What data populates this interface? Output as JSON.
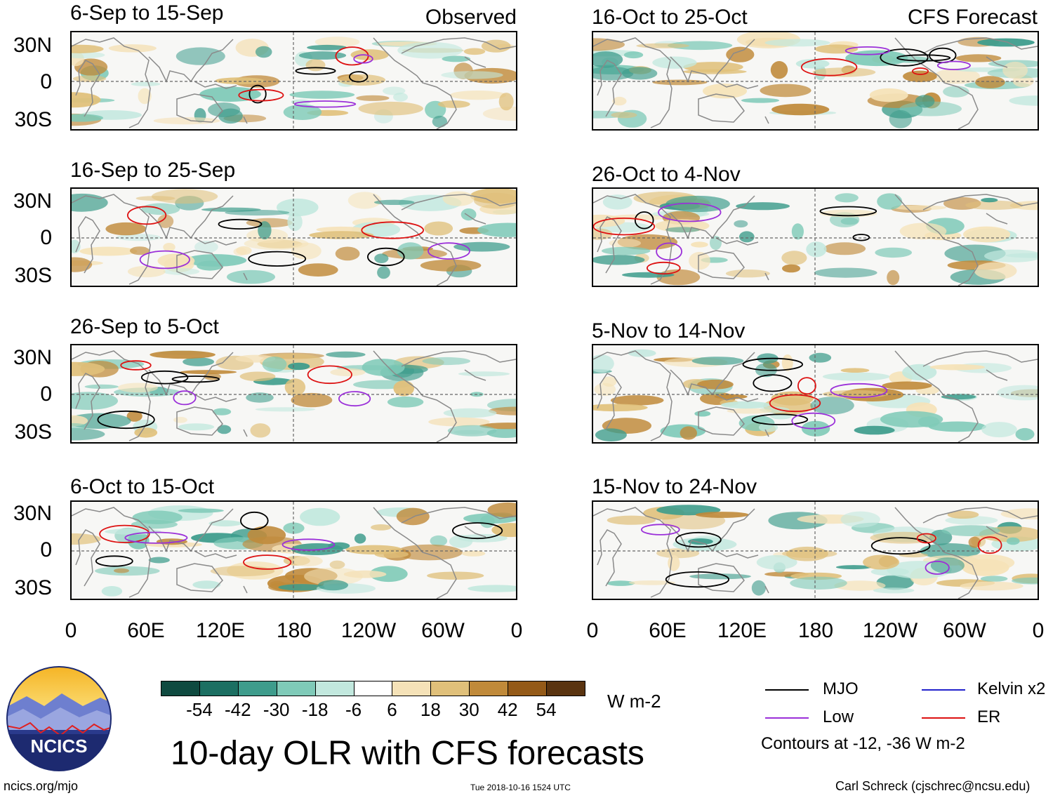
{
  "panels": [
    {
      "title": "6-Sep to 15-Sep",
      "tag": "Observed"
    },
    {
      "title": "16-Sep to 25-Sep",
      "tag": ""
    },
    {
      "title": "26-Sep to 5-Oct",
      "tag": ""
    },
    {
      "title": "6-Oct to 15-Oct",
      "tag": ""
    },
    {
      "title": "16-Oct to 25-Oct",
      "tag": "CFS Forecast"
    },
    {
      "title": "26-Oct to 4-Nov",
      "tag": ""
    },
    {
      "title": "5-Nov to 14-Nov",
      "tag": ""
    },
    {
      "title": "15-Nov to 24-Nov",
      "tag": ""
    }
  ],
  "y_ticks": [
    "30N",
    "0",
    "30S"
  ],
  "x_ticks": [
    "0",
    "60E",
    "120E",
    "180",
    "120W",
    "60W",
    "0"
  ],
  "colorbar": {
    "colors": [
      "#0f4a40",
      "#1c6f62",
      "#3e9c8c",
      "#7fcab8",
      "#c2e8de",
      "#ffffff",
      "#f5e2b8",
      "#e0c07a",
      "#c08a3a",
      "#945a18",
      "#5a3410"
    ],
    "labels": [
      "-54",
      "-42",
      "-30",
      "-18",
      "-6",
      "6",
      "18",
      "30",
      "42",
      "54"
    ],
    "units": "W m-2"
  },
  "main_title": "10-day OLR with CFS forecasts",
  "legend": {
    "items": [
      {
        "label": "MJO",
        "color": "#000000"
      },
      {
        "label": "Kelvin x2",
        "color": "#2222cc"
      },
      {
        "label": "Low",
        "color": "#9b30d9"
      },
      {
        "label": "ER",
        "color": "#dd1111"
      }
    ],
    "note": "Contours at -12, -36 W m-2"
  },
  "logo_text": "NCICS",
  "footer": {
    "url": "ncics.org/mjo",
    "timestamp": "Tue 2018-10-16 1524 UTC",
    "author": "Carl Schreck (cjschrec@ncsu.edu)"
  }
}
